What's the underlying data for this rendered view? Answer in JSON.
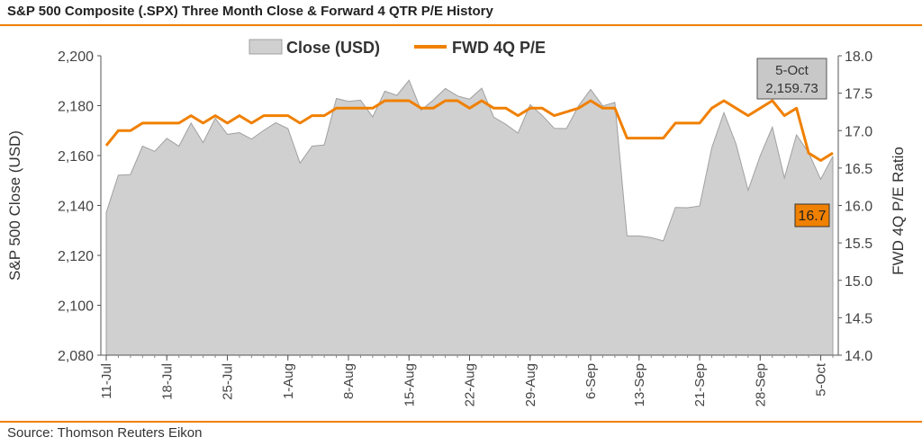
{
  "title": "S&P 500 Composite (.SPX) Three Month Close & Forward 4 QTR P/E History",
  "source": "Source: Thomson Reuters Eikon",
  "colors": {
    "accent": "#f08000",
    "area_fill": "#d0d0d0",
    "area_stroke": "#a0a0a0",
    "callout_box": "#c8c8c8"
  },
  "chart_data": {
    "type": "area",
    "ylabel": "S&P 500 Close (USD)",
    "y2label": "FWD 4Q P/E Ratio",
    "ylim": [
      2080,
      2200
    ],
    "y2lim": [
      14.0,
      18.0
    ],
    "yticks": [
      "2,080",
      "2,100",
      "2,120",
      "2,140",
      "2,160",
      "2,180",
      "2,200"
    ],
    "y2ticks": [
      "14.0",
      "14.5",
      "15.0",
      "15.5",
      "16.0",
      "16.5",
      "17.0",
      "17.5",
      "18.0"
    ],
    "x_tick_labels": [
      {
        "i": 0,
        "label": "11-Jul"
      },
      {
        "i": 5,
        "label": "18-Jul"
      },
      {
        "i": 10,
        "label": "25-Jul"
      },
      {
        "i": 15,
        "label": "1-Aug"
      },
      {
        "i": 20,
        "label": "8-Aug"
      },
      {
        "i": 25,
        "label": "15-Aug"
      },
      {
        "i": 30,
        "label": "22-Aug"
      },
      {
        "i": 35,
        "label": "29-Aug"
      },
      {
        "i": 40,
        "label": "6-Sep"
      },
      {
        "i": 44,
        "label": "13-Sep"
      },
      {
        "i": 49,
        "label": "21-Sep"
      },
      {
        "i": 54,
        "label": "28-Sep"
      },
      {
        "i": 59,
        "label": "5-Oct"
      }
    ],
    "legend_position": "top-center",
    "series": [
      {
        "name": "Close (USD)",
        "type": "area",
        "axis": "left",
        "values": [
          2137.2,
          2152.1,
          2152.4,
          2163.8,
          2161.7,
          2166.9,
          2163.8,
          2173.0,
          2165.2,
          2175.0,
          2168.5,
          2169.2,
          2166.6,
          2170.1,
          2173.2,
          2170.8,
          2157.0,
          2163.8,
          2164.2,
          2182.9,
          2181.7,
          2182.2,
          2175.5,
          2185.8,
          2184.1,
          2190.2,
          2178.2,
          2182.2,
          2186.9,
          2183.9,
          2182.6,
          2187.0,
          2175.4,
          2172.5,
          2169.0,
          2180.4,
          2176.1,
          2170.9,
          2170.8,
          2179.9,
          2186.5,
          2179.9,
          2181.3,
          2127.8,
          2127.8,
          2127.1,
          2125.8,
          2139.2,
          2139.1,
          2139.8,
          2163.1,
          2177.2,
          2164.7,
          2146.1,
          2159.9,
          2171.4,
          2151.1,
          2168.3,
          2161.2,
          2150.5,
          2159.7
        ]
      },
      {
        "name": "FWD 4Q P/E",
        "type": "line",
        "axis": "right",
        "values": [
          16.8,
          17.0,
          17.0,
          17.1,
          17.1,
          17.1,
          17.1,
          17.2,
          17.1,
          17.2,
          17.1,
          17.2,
          17.1,
          17.2,
          17.2,
          17.2,
          17.1,
          17.2,
          17.2,
          17.3,
          17.3,
          17.3,
          17.3,
          17.4,
          17.4,
          17.4,
          17.3,
          17.3,
          17.4,
          17.4,
          17.3,
          17.4,
          17.3,
          17.3,
          17.2,
          17.3,
          17.3,
          17.2,
          17.25,
          17.3,
          17.4,
          17.3,
          17.3,
          16.9,
          16.9,
          16.9,
          16.9,
          17.1,
          17.1,
          17.1,
          17.3,
          17.4,
          17.3,
          17.2,
          17.3,
          17.4,
          17.2,
          17.3,
          16.7,
          16.6,
          16.7
        ]
      }
    ],
    "callouts": {
      "close": {
        "date": "5-Oct",
        "value": "2,159.73"
      },
      "pe": {
        "value": "16.7"
      }
    }
  }
}
